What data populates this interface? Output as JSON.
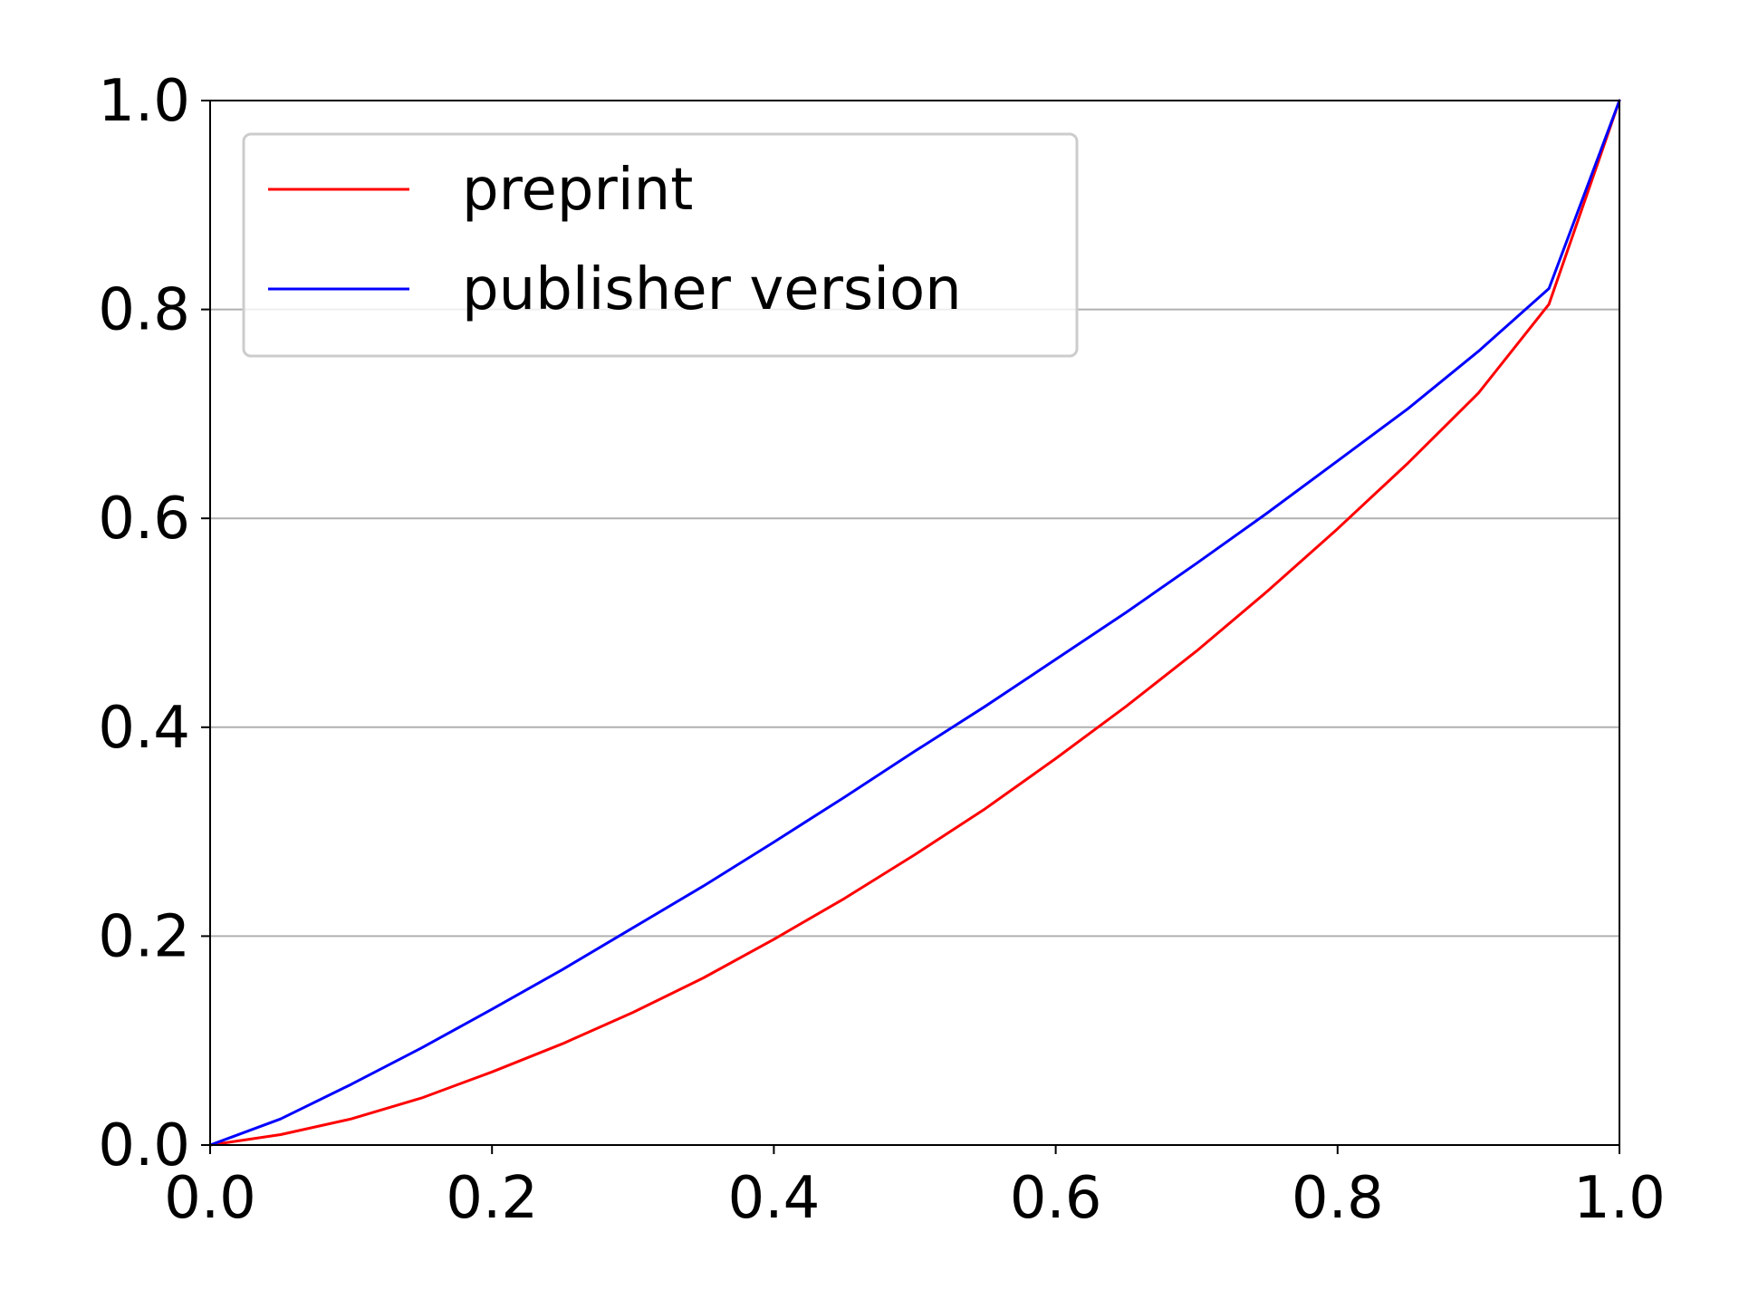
{
  "chart_data": {
    "type": "line",
    "title": "",
    "xlabel": "",
    "ylabel": "",
    "xlim": [
      0.0,
      1.0
    ],
    "ylim": [
      0.0,
      1.0
    ],
    "xticks": [
      "0.0",
      "0.2",
      "0.4",
      "0.6",
      "0.8",
      "1.0"
    ],
    "yticks": [
      "0.0",
      "0.2",
      "0.4",
      "0.6",
      "0.8",
      "1.0"
    ],
    "grid": "horizontal",
    "legend_position": "top-left",
    "series": [
      {
        "name": "preprint",
        "color": "#ff0000",
        "x": [
          0.0,
          0.05,
          0.1,
          0.15,
          0.2,
          0.25,
          0.3,
          0.35,
          0.4,
          0.45,
          0.5,
          0.55,
          0.6,
          0.65,
          0.7,
          0.75,
          0.8,
          0.85,
          0.9,
          0.95,
          1.0
        ],
        "y": [
          0.0,
          0.01,
          0.025,
          0.045,
          0.07,
          0.097,
          0.127,
          0.16,
          0.197,
          0.236,
          0.278,
          0.322,
          0.37,
          0.42,
          0.473,
          0.53,
          0.59,
          0.653,
          0.72,
          0.805,
          1.0
        ]
      },
      {
        "name": "publisher version",
        "color": "#0000ff",
        "x": [
          0.0,
          0.05,
          0.1,
          0.15,
          0.2,
          0.25,
          0.3,
          0.35,
          0.4,
          0.45,
          0.5,
          0.55,
          0.6,
          0.65,
          0.7,
          0.75,
          0.8,
          0.85,
          0.9,
          0.95,
          1.0
        ],
        "y": [
          0.0,
          0.025,
          0.058,
          0.093,
          0.13,
          0.168,
          0.208,
          0.248,
          0.29,
          0.333,
          0.377,
          0.42,
          0.465,
          0.51,
          0.557,
          0.605,
          0.655,
          0.705,
          0.76,
          0.82,
          1.0
        ]
      }
    ]
  }
}
